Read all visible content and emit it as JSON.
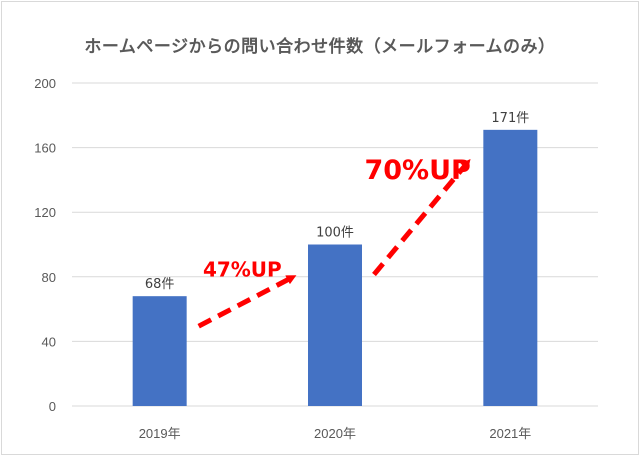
{
  "chart_data": {
    "type": "bar",
    "title": "ホームページからの問い合わせ件数（メールフォームのみ）",
    "categories": [
      "2019年",
      "2020年",
      "2021年"
    ],
    "values": [
      68,
      100,
      171
    ],
    "data_labels": [
      "68件",
      "100件",
      "171件"
    ],
    "ylim": [
      0,
      200
    ],
    "yticks": [
      "0",
      "40",
      "80",
      "120",
      "160",
      "200"
    ],
    "grid": true,
    "legend": "none",
    "bar_color": "#4472c4",
    "annotations": [
      {
        "text": "47%UP",
        "from": "2019年",
        "to": "2020年",
        "color": "#ff0000"
      },
      {
        "text": "70%UP",
        "from": "2020年",
        "to": "2021年",
        "color": "#ff0000"
      }
    ]
  }
}
